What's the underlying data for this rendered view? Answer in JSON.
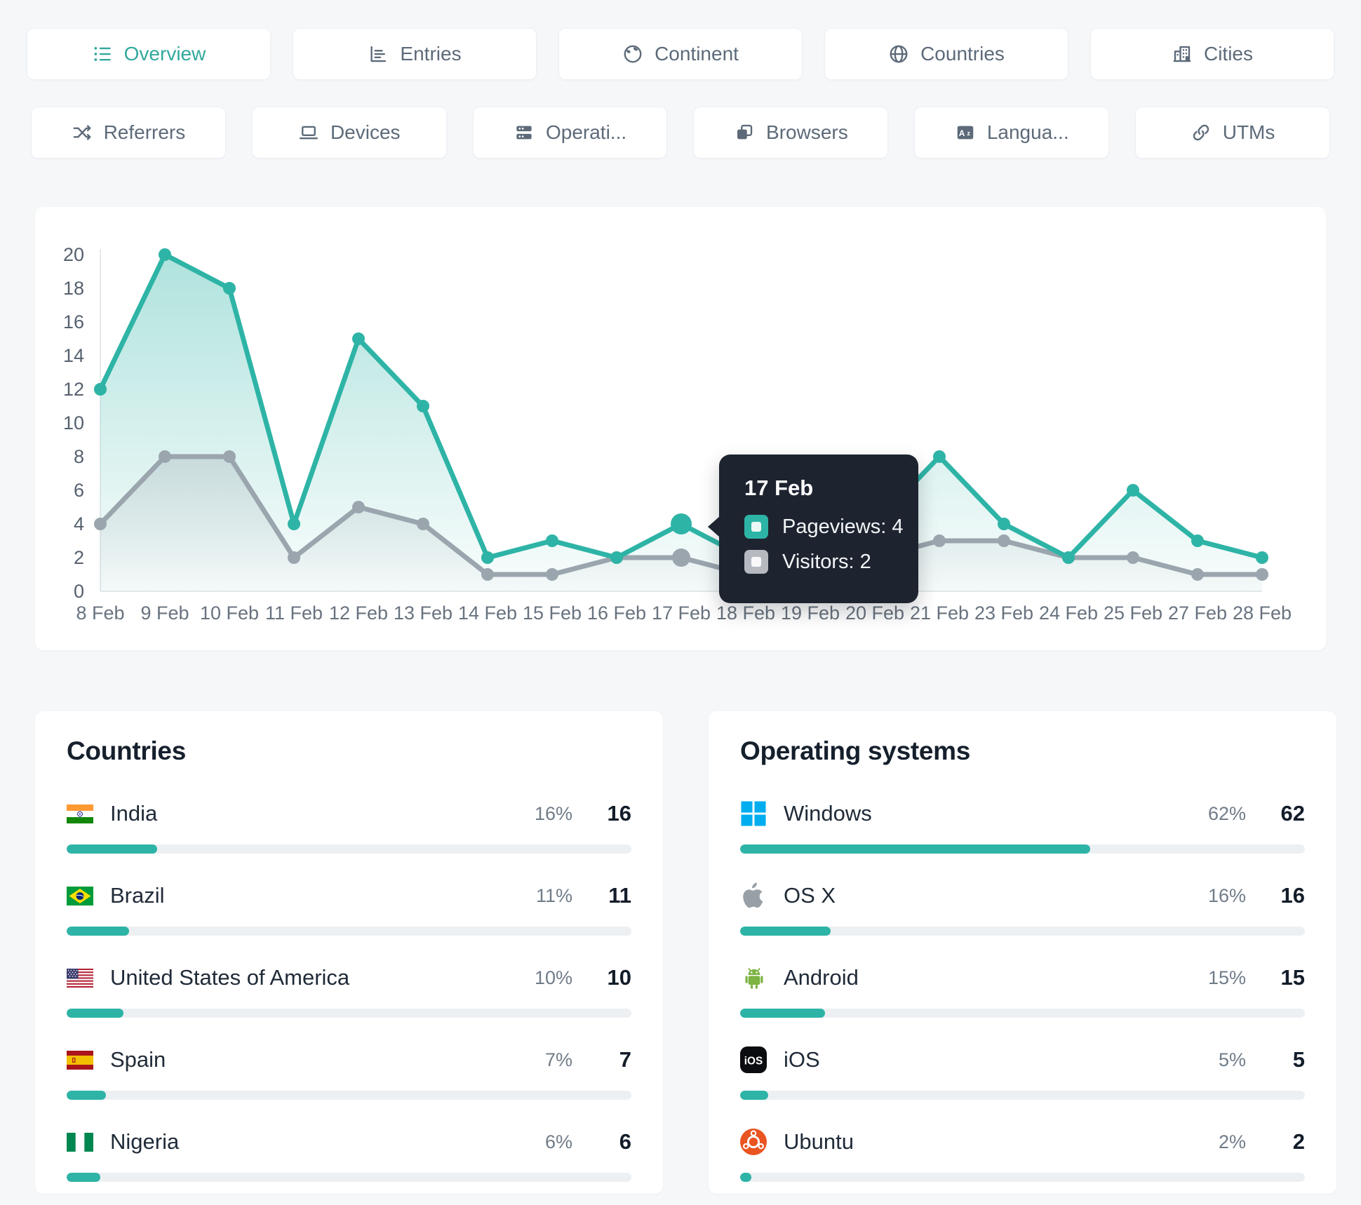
{
  "colors": {
    "accent": "#2EB4A6",
    "secondary_line": "#9AA5AE",
    "tooltip_bg": "#1D2430",
    "tab_active_text": "#33A89D"
  },
  "tabs_row1": [
    {
      "label": "Overview",
      "icon": "list",
      "active": true
    },
    {
      "label": "Entries",
      "icon": "bar-chart",
      "active": false
    },
    {
      "label": "Continent",
      "icon": "earth",
      "active": false
    },
    {
      "label": "Countries",
      "icon": "globe",
      "active": false
    },
    {
      "label": "Cities",
      "icon": "buildings",
      "active": false
    }
  ],
  "tabs_row2": [
    {
      "label": "Referrers",
      "icon": "shuffle",
      "active": false
    },
    {
      "label": "Devices",
      "icon": "laptop",
      "active": false
    },
    {
      "label": "Operati...",
      "icon": "server",
      "active": false
    },
    {
      "label": "Browsers",
      "icon": "app-window",
      "active": false
    },
    {
      "label": "Langua...",
      "icon": "translate",
      "active": false
    },
    {
      "label": "UTMs",
      "icon": "link",
      "active": false
    }
  ],
  "chart_data": {
    "type": "line",
    "x": [
      "8 Feb",
      "9 Feb",
      "10 Feb",
      "11 Feb",
      "12 Feb",
      "13 Feb",
      "14 Feb",
      "15 Feb",
      "16 Feb",
      "17 Feb",
      "18 Feb",
      "19 Feb",
      "20 Feb",
      "21 Feb",
      "23 Feb",
      "24 Feb",
      "25 Feb",
      "27 Feb",
      "28 Feb"
    ],
    "series": [
      {
        "name": "Pageviews",
        "color": "#2EB4A6",
        "values": [
          12,
          20,
          18,
          4,
          15,
          11,
          2,
          3,
          2,
          4,
          2,
          2,
          4,
          8,
          4,
          2,
          6,
          3,
          2
        ]
      },
      {
        "name": "Visitors",
        "color": "#9AA5AE",
        "values": [
          4,
          8,
          8,
          2,
          5,
          4,
          1,
          1,
          2,
          2,
          1,
          1,
          2,
          3,
          3,
          2,
          2,
          1,
          1
        ]
      }
    ],
    "ylim": [
      0,
      20
    ],
    "ytick_step": 2,
    "grid": false,
    "legend_position": "none",
    "highlight_index": 9,
    "note": "values for 18-20 Feb are obscured by the tooltip overlay"
  },
  "tooltip": {
    "date": "17 Feb",
    "rows": [
      {
        "label": "Pageviews",
        "value": "4",
        "color": "#2EB4A6"
      },
      {
        "label": "Visitors",
        "value": "2",
        "color": "#B6BAC0"
      }
    ]
  },
  "panels": [
    {
      "title": "Countries",
      "rows": [
        {
          "label": "India",
          "icon": "flag-india",
          "pct": "16%",
          "pct_value": 16,
          "count": "16"
        },
        {
          "label": "Brazil",
          "icon": "flag-brazil",
          "pct": "11%",
          "pct_value": 11,
          "count": "11"
        },
        {
          "label": "United States of America",
          "icon": "flag-usa",
          "pct": "10%",
          "pct_value": 10,
          "count": "10"
        },
        {
          "label": "Spain",
          "icon": "flag-spain",
          "pct": "7%",
          "pct_value": 7,
          "count": "7"
        },
        {
          "label": "Nigeria",
          "icon": "flag-nigeria",
          "pct": "6%",
          "pct_value": 6,
          "count": "6"
        }
      ]
    },
    {
      "title": "Operating systems",
      "rows": [
        {
          "label": "Windows",
          "icon": "windows-logo",
          "pct": "62%",
          "pct_value": 62,
          "count": "62"
        },
        {
          "label": "OS X",
          "icon": "apple-logo",
          "pct": "16%",
          "pct_value": 16,
          "count": "16"
        },
        {
          "label": "Android",
          "icon": "android-logo",
          "pct": "15%",
          "pct_value": 15,
          "count": "15"
        },
        {
          "label": "iOS",
          "icon": "ios-logo",
          "pct": "5%",
          "pct_value": 5,
          "count": "5"
        },
        {
          "label": "Ubuntu",
          "icon": "ubuntu-logo",
          "pct": "2%",
          "pct_value": 2,
          "count": "2"
        }
      ]
    }
  ]
}
